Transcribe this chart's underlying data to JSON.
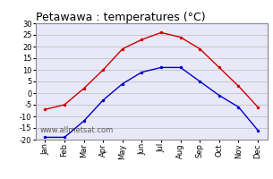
{
  "title": "Petawawa : temperatures (°C)",
  "months": [
    "Jan",
    "Feb",
    "Mar",
    "Apr",
    "May",
    "Jun",
    "Jul",
    "Aug",
    "Sep",
    "Oct",
    "Nov",
    "Dec"
  ],
  "max_temps": [
    -7,
    -5,
    2,
    10,
    19,
    23,
    26,
    24,
    19,
    11,
    3,
    -6
  ],
  "min_temps": [
    -19,
    -19,
    -12,
    -3,
    4,
    9,
    11,
    11,
    5,
    -1,
    -6,
    -16
  ],
  "max_color": "#cc0000",
  "min_color": "#0000cc",
  "ylim": [
    -20,
    30
  ],
  "yticks": [
    -20,
    -15,
    -10,
    -5,
    0,
    5,
    10,
    15,
    20,
    25,
    30
  ],
  "grid_color": "#bbbbbb",
  "bg_color": "#ffffff",
  "plot_bg_color": "#e8e8f8",
  "watermark": "www.allmetsat.com",
  "title_fontsize": 9,
  "tick_fontsize": 6,
  "watermark_fontsize": 6
}
